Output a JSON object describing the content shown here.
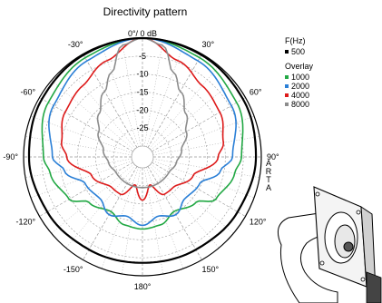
{
  "chart_data": {
    "type": "polar-line",
    "title": "Directivity pattern",
    "top_label": "0°/ 0 dB",
    "radial_ticks": [
      "-5",
      "-10",
      "-15",
      "-20",
      "-25"
    ],
    "radial_range_db": [
      -30,
      0
    ],
    "angle_labels": [
      {
        "angle": -30,
        "text": "-30°"
      },
      {
        "angle": 30,
        "text": "30°"
      },
      {
        "angle": -60,
        "text": "-60°"
      },
      {
        "angle": 60,
        "text": "60°"
      },
      {
        "angle": -90,
        "text": "-90°"
      },
      {
        "angle": 90,
        "text": "90°"
      },
      {
        "angle": -120,
        "text": "-120°"
      },
      {
        "angle": 120,
        "text": "120°"
      },
      {
        "angle": -150,
        "text": "-150°"
      },
      {
        "angle": 150,
        "text": "150°"
      },
      {
        "angle": 180,
        "text": "180°"
      }
    ],
    "grid": true,
    "legend": {
      "header": "F(Hz)",
      "overlay_label": "Overlay",
      "placement": "right"
    },
    "watermark": "ARTA",
    "series": [
      {
        "name": "500",
        "color": "#000000",
        "role": "main",
        "angles": [
          0,
          30,
          60,
          90,
          120,
          150,
          180
        ],
        "db": [
          0,
          -0.3,
          -0.8,
          -1.5,
          -2.5,
          -3.3,
          -3.6
        ]
      },
      {
        "name": "1000",
        "color": "#22a844",
        "role": "overlay",
        "angles": [
          0,
          30,
          60,
          90,
          100,
          120,
          130,
          150,
          165,
          180
        ],
        "db": [
          0,
          -1.2,
          -2.8,
          -5.5,
          -7,
          -9.5,
          -13.5,
          -15.5,
          -13.5,
          -13
        ]
      },
      {
        "name": "2000",
        "color": "#2a7fd6",
        "role": "overlay",
        "angles": [
          0,
          30,
          60,
          90,
          100,
          115,
          135,
          150,
          165,
          180
        ],
        "db": [
          0,
          -2.2,
          -4.5,
          -8,
          -11,
          -15.5,
          -16.5,
          -14.5,
          -16,
          -14
        ]
      },
      {
        "name": "4000",
        "color": "#dd1a1a",
        "role": "overlay",
        "angles": [
          0,
          20,
          40,
          60,
          80,
          90,
          110,
          135,
          150,
          165,
          180
        ],
        "db": [
          0,
          -4.5,
          -7.2,
          -8.2,
          -10.2,
          -12,
          -18,
          -21,
          -21,
          -25,
          -21
        ]
      },
      {
        "name": "8000",
        "color": "#8c8c8c",
        "role": "overlay",
        "angles": [
          0,
          10,
          20,
          30,
          45,
          60,
          80,
          100,
          120,
          150,
          180
        ],
        "db": [
          0,
          -1.5,
          -8,
          -12,
          -16,
          -19,
          -22,
          -23.5,
          -24.5,
          -24.5,
          -24.5
        ]
      }
    ]
  }
}
